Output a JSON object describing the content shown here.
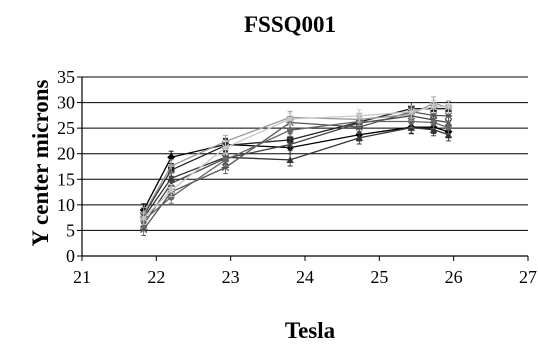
{
  "chart_data": {
    "type": "line",
    "title": "FSSQ001",
    "xlabel": "Tesla",
    "ylabel": "Y center microns",
    "xlim": [
      21,
      27
    ],
    "ylim": [
      0,
      35
    ],
    "xticks": [
      21,
      22,
      23,
      24,
      25,
      26,
      27
    ],
    "yticks": [
      0,
      5,
      10,
      15,
      20,
      25,
      30,
      35
    ],
    "grid": "horizontal",
    "legend": "none",
    "x": [
      21.83,
      22.2,
      22.93,
      23.8,
      24.73,
      25.43,
      25.73,
      25.93
    ],
    "series": [
      {
        "values": [
          9.0,
          19.3,
          21.8,
          21.2,
          23.7,
          25.2,
          25.2,
          24.3
        ],
        "color": "#000000",
        "marker": "diamond"
      },
      {
        "values": [
          8.0,
          16.8,
          21.6,
          22.7,
          26.2,
          28.8,
          28.8,
          28.8
        ],
        "color": "#222222",
        "marker": "square"
      },
      {
        "values": [
          7.5,
          15.2,
          19.3,
          18.8,
          23.1,
          25.1,
          24.7,
          23.7
        ],
        "color": "#333333",
        "marker": "triangle"
      },
      {
        "values": [
          6.2,
          14.2,
          19.1,
          21.8,
          26.0,
          27.4,
          26.6,
          26.1
        ],
        "color": "#444444",
        "marker": "cross"
      },
      {
        "values": [
          5.2,
          12.5,
          17.3,
          26.1,
          25.2,
          28.2,
          27.5,
          27.4
        ],
        "color": "#555555",
        "marker": "star"
      },
      {
        "values": [
          7.0,
          11.5,
          18.8,
          24.6,
          26.3,
          26.3,
          26.1,
          25.1
        ],
        "color": "#666666",
        "marker": "circle"
      },
      {
        "values": [
          8.3,
          17.6,
          22.4,
          27.1,
          26.7,
          27.7,
          29.9,
          29.0
        ],
        "color": "#999999",
        "marker": "plus"
      },
      {
        "values": [
          7.4,
          12.8,
          21.2,
          26.8,
          27.4,
          28.2,
          29.2,
          29.2
        ],
        "color": "#c8c8c8",
        "marker": "star"
      }
    ]
  }
}
